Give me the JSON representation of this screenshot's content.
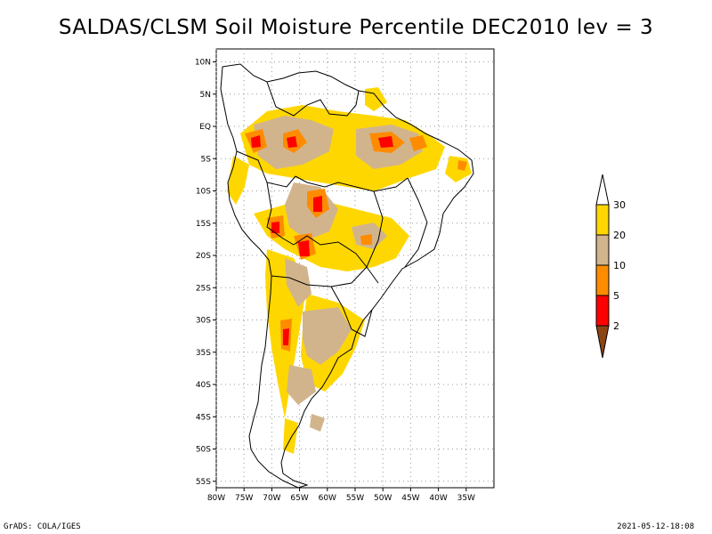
{
  "title": "SALDAS/CLSM Soil Moisture Percentile DEC2010 lev = 3",
  "footer": {
    "left": "GrADS: COLA/IGES",
    "right": "2021-05-12-18:08"
  },
  "map": {
    "lon_range": [
      -80,
      -30
    ],
    "lat_range": [
      -56,
      12
    ],
    "grid": true,
    "lat_ticks": [
      {
        "lat": 10,
        "label": "10N"
      },
      {
        "lat": 5,
        "label": "5N"
      },
      {
        "lat": 0,
        "label": "EQ"
      },
      {
        "lat": -5,
        "label": "5S"
      },
      {
        "lat": -10,
        "label": "10S"
      },
      {
        "lat": -15,
        "label": "15S"
      },
      {
        "lat": -20,
        "label": "20S"
      },
      {
        "lat": -25,
        "label": "25S"
      },
      {
        "lat": -30,
        "label": "30S"
      },
      {
        "lat": -35,
        "label": "35S"
      },
      {
        "lat": -40,
        "label": "40S"
      },
      {
        "lat": -45,
        "label": "45S"
      },
      {
        "lat": -50,
        "label": "50S"
      },
      {
        "lat": -55,
        "label": "55S"
      }
    ],
    "lon_ticks": [
      {
        "lon": -80,
        "label": "80W"
      },
      {
        "lon": -75,
        "label": "75W"
      },
      {
        "lon": -70,
        "label": "70W"
      },
      {
        "lon": -65,
        "label": "65W"
      },
      {
        "lon": -60,
        "label": "60W"
      },
      {
        "lon": -55,
        "label": "55W"
      },
      {
        "lon": -50,
        "label": "50W"
      },
      {
        "lon": -45,
        "label": "45W"
      },
      {
        "lon": -40,
        "label": "40W"
      },
      {
        "lon": -35,
        "label": "35W"
      }
    ]
  },
  "legend": {
    "levels": [
      {
        "label": "30",
        "color": "#ffd700"
      },
      {
        "label": "20",
        "color": "#d2b48c"
      },
      {
        "label": "10",
        "color": "#ff8c00"
      },
      {
        "label": "5",
        "color": "#ff0000"
      },
      {
        "label": "2",
        "color": "#8b4513"
      }
    ],
    "top_color": "#ffffff"
  },
  "colors": {
    "p30": "#ffd700",
    "p20": "#d2b48c",
    "p10": "#ff8c00",
    "p5": "#ff0000",
    "p2": "#8b4513",
    "border": "#000000"
  }
}
